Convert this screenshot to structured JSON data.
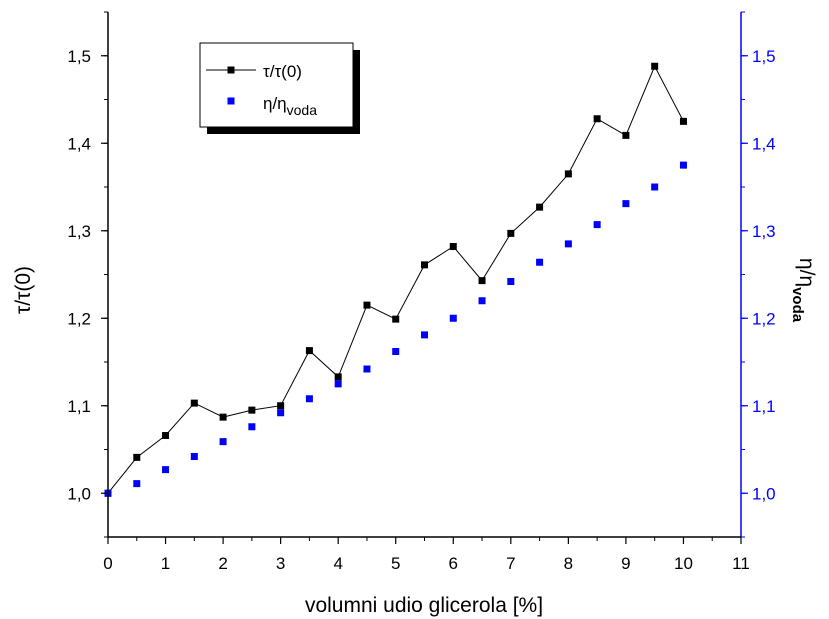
{
  "chart_data": {
    "type": "scatter",
    "xlabel": "volumni udio glicerola [%]",
    "ylabel_left": "τ/τ(0)",
    "ylabel_right": {
      "main": "η/η",
      "sub": "voda"
    },
    "xlim": [
      0,
      11
    ],
    "ylim": [
      0.95,
      1.55
    ],
    "x_ticks": [
      "0",
      "1",
      "2",
      "3",
      "4",
      "5",
      "6",
      "7",
      "8",
      "9",
      "10",
      "11"
    ],
    "y_ticks": [
      "1,0",
      "1,1",
      "1,2",
      "1,3",
      "1,4",
      "1,5"
    ],
    "colors": {
      "left_axis": "#000000",
      "right_axis": "#0000ff",
      "series_tau": "#000000",
      "series_eta": "#0000ff"
    },
    "legend": {
      "position": "top-left"
    },
    "series": [
      {
        "name": "τ/τ(0)",
        "style": "line+square",
        "x": [
          0,
          0.5,
          1,
          1.5,
          2,
          2.5,
          3,
          3.5,
          4,
          4.5,
          5,
          5.5,
          6,
          6.5,
          7,
          7.5,
          8,
          8.5,
          9,
          9.5,
          10
        ],
        "y": [
          1.0,
          1.041,
          1.066,
          1.103,
          1.087,
          1.095,
          1.1,
          1.163,
          1.133,
          1.215,
          1.199,
          1.261,
          1.282,
          1.243,
          1.297,
          1.327,
          1.365,
          1.428,
          1.409,
          1.488,
          1.425
        ]
      },
      {
        "name": "η/η",
        "name_sub": "voda",
        "style": "square",
        "x": [
          0,
          0.5,
          1,
          1.5,
          2,
          2.5,
          3,
          3.5,
          4,
          4.5,
          5,
          5.5,
          6,
          6.5,
          7,
          7.5,
          8,
          8.5,
          9,
          9.5,
          10
        ],
        "y": [
          1.0,
          1.011,
          1.027,
          1.042,
          1.059,
          1.076,
          1.092,
          1.108,
          1.125,
          1.142,
          1.162,
          1.181,
          1.2,
          1.22,
          1.242,
          1.264,
          1.285,
          1.307,
          1.331,
          1.35,
          1.375
        ]
      }
    ]
  }
}
